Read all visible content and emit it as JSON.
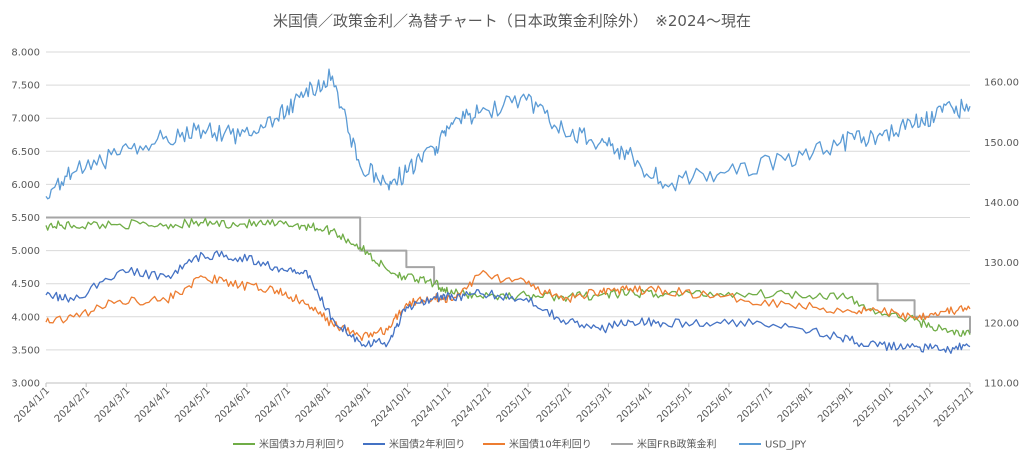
{
  "chart_data": {
    "type": "line",
    "title": "米国債／政策金利／為替チャート（日本政策金利除外）　※2024～現在",
    "xlabel": "",
    "ylabel": "",
    "x_ticks": [
      "2024/1/1",
      "2024/2/1",
      "2024/3/1",
      "2024/4/1",
      "2024/5/1",
      "2024/6/1",
      "2024/7/1",
      "2024/8/1",
      "2024/9/1",
      "2024/10/1",
      "2024/11/1",
      "2024/12/1",
      "2025/1/1",
      "2025/2/1",
      "2025/3/1",
      "2025/4/1",
      "2025/5/1",
      "2025/6/1",
      "2025/7/1",
      "2025/8/1",
      "2025/9/1",
      "2025/10/1",
      "2025/11/1",
      "2025/12/1"
    ],
    "y_left": {
      "min": 3.0,
      "max": 8.0,
      "ticks": [
        "3.000",
        "3.500",
        "4.000",
        "4.500",
        "5.000",
        "5.500",
        "6.000",
        "6.500",
        "7.000",
        "7.500",
        "8.000"
      ]
    },
    "y_right": {
      "min": 110,
      "max": 165,
      "ticks": [
        "110.00",
        "120.00",
        "130.00",
        "140.00",
        "150.00",
        "160.00"
      ]
    },
    "grid": true,
    "legend_position": "bottom",
    "series": [
      {
        "name": "米国債3カ月利回り",
        "axis": "left",
        "color": "#70ad47",
        "values": [
          5.38,
          5.38,
          5.4,
          5.39,
          5.42,
          5.4,
          5.4,
          5.38,
          5.3,
          5.05,
          4.7,
          4.6,
          4.5,
          4.36,
          4.32,
          4.32,
          4.3,
          4.33,
          4.35,
          4.35,
          4.35,
          4.35,
          4.32,
          4.06,
          3.95,
          3.8,
          3.73
        ]
      },
      {
        "name": "米国債2年利回り",
        "axis": "left",
        "color": "#4472c4",
        "values": [
          4.33,
          4.25,
          4.7,
          4.6,
          4.94,
          4.9,
          4.75,
          4.7,
          3.98,
          3.62,
          3.6,
          4.15,
          4.3,
          4.3,
          4.35,
          4.28,
          3.95,
          3.8,
          3.95,
          3.9,
          3.9,
          3.9,
          3.68,
          3.55,
          3.55,
          3.5,
          3.55
        ]
      },
      {
        "name": "米国債10年利回り",
        "axis": "left",
        "color": "#ed7d31",
        "values": [
          3.92,
          4.0,
          4.25,
          4.25,
          4.6,
          4.47,
          4.4,
          4.2,
          3.9,
          3.7,
          3.8,
          4.2,
          4.3,
          4.25,
          4.65,
          4.5,
          4.25,
          4.4,
          4.4,
          4.4,
          4.3,
          4.2,
          4.1,
          4.1,
          4.0,
          4.08,
          4.12
        ]
      },
      {
        "name": "米国FRB政策金利",
        "axis": "left",
        "color": "#a5a5a5",
        "step": true,
        "values": [
          5.5,
          5.5,
          5.5,
          5.5,
          5.5,
          5.5,
          5.5,
          5.5,
          5.5,
          5.0,
          5.0,
          4.75,
          4.5,
          4.5,
          4.5,
          4.5,
          4.5,
          4.5,
          4.5,
          4.5,
          4.5,
          4.5,
          4.5,
          4.25,
          4.0,
          4.0,
          3.75
        ]
      },
      {
        "name": "USD_JPY",
        "axis": "right",
        "color": "#5b9bd5",
        "values": [
          141,
          145,
          148,
          151,
          152,
          151,
          154,
          158,
          161,
          146,
          143,
          145,
          149,
          153,
          155,
          157,
          152,
          150,
          148,
          143,
          145,
          147,
          150,
          151,
          153,
          155,
          156
        ]
      }
    ],
    "x_positions": [
      0.0,
      0.03,
      0.08,
      0.13,
      0.17,
      0.21,
      0.25,
      0.28,
      0.31,
      0.34,
      0.37,
      0.39,
      0.42,
      0.44,
      0.47,
      0.52,
      0.56,
      0.6,
      0.63,
      0.67,
      0.73,
      0.8,
      0.86,
      0.9,
      0.94,
      0.97,
      1.0
    ]
  }
}
